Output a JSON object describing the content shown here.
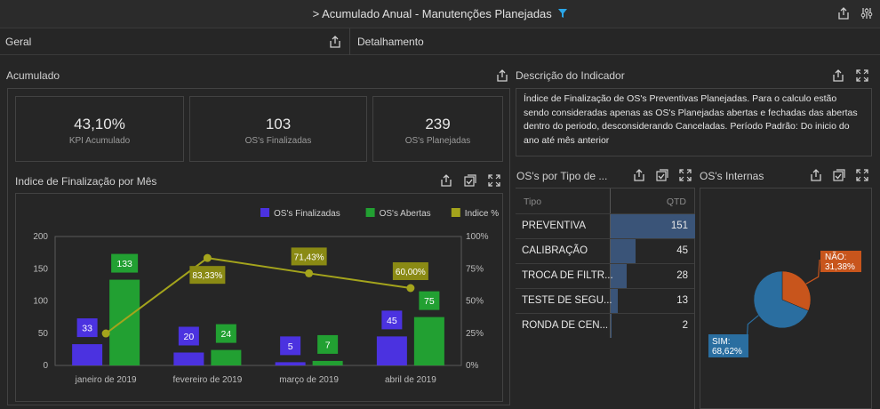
{
  "header": {
    "title": "> Acumulado Anual - Manutenções Planejadas"
  },
  "tabs": [
    {
      "label": "Geral"
    },
    {
      "label": "Detalhamento"
    }
  ],
  "acumulado": {
    "title": "Acumulado",
    "kpis": [
      {
        "value": "43,10%",
        "label": "KPI Acumulado"
      },
      {
        "value": "103",
        "label": "OS's Finalizadas"
      },
      {
        "value": "239",
        "label": "OS's Planejadas"
      }
    ]
  },
  "descricao": {
    "title": "Descrição do Indicador",
    "text": "Índice de Finalização de OS's Preventivas Planejadas. Para o calculo estão sendo consideradas apenas as OS's Planejadas abertas e fechadas das abertas dentro do periodo, desconsiderando Canceladas. Período Padrão: Do inicio do ano até mês anterior"
  },
  "tipo": {
    "title": "OS's por Tipo de ...",
    "col_tipo": "Tipo",
    "col_qtd": "QTD",
    "rows": [
      {
        "label": "PREVENTIVA",
        "value": "151",
        "n": 151
      },
      {
        "label": "CALIBRAÇÃO",
        "value": "45",
        "n": 45
      },
      {
        "label": "TROCA DE FILTR...",
        "value": "28",
        "n": 28
      },
      {
        "label": "TESTE DE SEGU...",
        "value": "13",
        "n": 13
      },
      {
        "label": "RONDA DE CEN...",
        "value": "2",
        "n": 2
      }
    ],
    "bar_color": "#3a5478"
  },
  "internas": {
    "title": "OS's Internas",
    "slices": [
      {
        "label": "SIM:",
        "value": "68,62%",
        "pct": 68.62,
        "color": "#2a6ea0"
      },
      {
        "label": "NÃO:",
        "value": "31,38%",
        "pct": 31.38,
        "color": "#c8551c"
      }
    ]
  },
  "chart_data": {
    "type": "bar",
    "title": "Indice de Finalização por Mês",
    "categories": [
      "janeiro de 2019",
      "fevereiro de 2019",
      "março de 2019",
      "abril de 2019"
    ],
    "series": [
      {
        "name": "OS's Finalizadas",
        "type": "bar",
        "color": "#4b32e0",
        "values": [
          33,
          20,
          5,
          45
        ],
        "labels": [
          "33",
          "20",
          "5",
          "45"
        ]
      },
      {
        "name": "OS's Abertas",
        "type": "bar",
        "color": "#22a032",
        "values": [
          133,
          24,
          7,
          75
        ],
        "labels": [
          "133",
          "24",
          "7",
          "75"
        ]
      },
      {
        "name": "Indice %",
        "type": "line",
        "axis": "right",
        "color": "#a4a41c",
        "values": [
          24.81,
          83.33,
          71.43,
          60.0
        ],
        "labels": [
          "",
          "83,33%",
          "71,43%",
          "60,00%"
        ]
      }
    ],
    "y_left": {
      "min": 0,
      "max": 200,
      "ticks": [
        "0",
        "50",
        "100",
        "150",
        "200"
      ]
    },
    "y_right": {
      "min": 0,
      "max": 100,
      "ticks": [
        "0%",
        "25%",
        "50%",
        "75%",
        "100%"
      ]
    },
    "legend": "top-right",
    "grid": false
  }
}
